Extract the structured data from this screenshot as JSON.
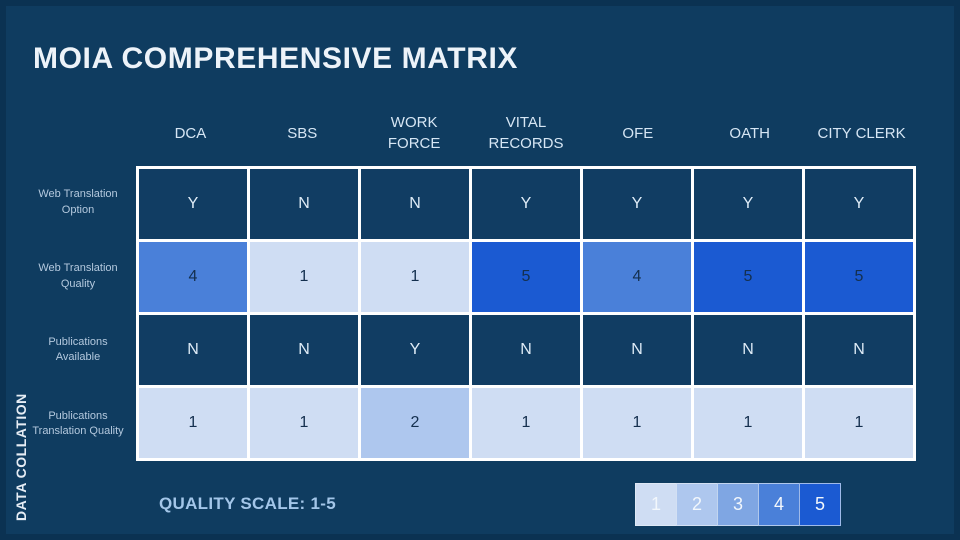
{
  "slide": {
    "title": "MOIA COMPREHENSIVE MATRIX",
    "side_label": "DATA COLLATION",
    "quality_scale_label": "QUALITY SCALE: 1-5"
  },
  "chart_data": {
    "type": "heatmap",
    "title": "MOIA COMPREHENSIVE MATRIX",
    "columns": [
      "DCA",
      "SBS",
      "WORK FORCE",
      "VITAL RECORDS",
      "OFE",
      "OATH",
      "CITY CLERK"
    ],
    "rows": [
      {
        "label": "Web Translation Option",
        "kind": "yes_no",
        "values": [
          "Y",
          "N",
          "N",
          "Y",
          "Y",
          "Y",
          "Y"
        ]
      },
      {
        "label": "Web Translation Quality",
        "kind": "quality_1_to_5",
        "values": [
          4,
          1,
          1,
          5,
          4,
          5,
          5
        ]
      },
      {
        "label": "Publications Available",
        "kind": "yes_no",
        "values": [
          "N",
          "N",
          "Y",
          "N",
          "N",
          "N",
          "N"
        ]
      },
      {
        "label": "Publications Translation Quality",
        "kind": "quality_1_to_5",
        "values": [
          1,
          1,
          2,
          1,
          1,
          1,
          1
        ]
      }
    ],
    "legend": {
      "label": "QUALITY SCALE: 1-5",
      "scale": [
        1,
        2,
        3,
        4,
        5
      ]
    },
    "legend_position": "bottom-right",
    "quality_colors": {
      "1": "#cfddf3",
      "2": "#aec7ee",
      "3": "#7fa6e3",
      "4": "#4a80d9",
      "5": "#1b5ad2"
    }
  },
  "colors": {
    "background": "#0f3c60",
    "frame": "#0b3252",
    "cell_navy": "#113d63",
    "cell_border": "#ffffff",
    "title_text": "#edf3f9",
    "header_text": "#d6e6f4",
    "row_label_text": "#b4c9de",
    "quality_scale_text": "#a3c6e9"
  }
}
